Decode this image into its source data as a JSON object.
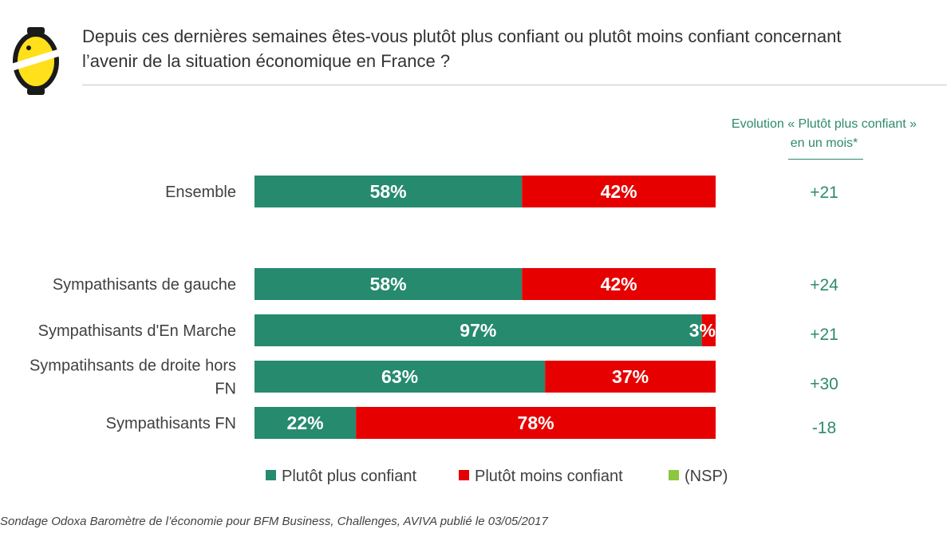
{
  "header": {
    "title_lines": [
      "Depuis ces dernières semaines êtes-vous plutôt plus confiant ou plutôt moins confiant concernant",
      "l’avenir de la situation économique en France ?"
    ]
  },
  "evolution": {
    "heading_lines": [
      "Evolution « Plutôt plus confiant »",
      "en un mois*"
    ]
  },
  "colors": {
    "plus": "#268a6e",
    "moins": "#e60000",
    "nsp": "#8dc63f",
    "label_text": "#404040",
    "evolution_text": "#2e8a6e"
  },
  "chart_data": {
    "type": "bar",
    "orientation": "horizontal",
    "stacked": true,
    "categories": [
      [
        "Ensemble"
      ],
      [
        "Sympathisants de gauche"
      ],
      [
        "Sympathisants d'En Marche"
      ],
      [
        "Sympatihsants de droite hors",
        "FN"
      ],
      [
        "Sympathisants FN"
      ]
    ],
    "series": [
      {
        "name": "Plutôt plus confiant",
        "values": [
          58,
          58,
          97,
          63,
          22
        ],
        "labels": [
          "58%",
          "58%",
          "97%",
          "63%",
          "22%"
        ]
      },
      {
        "name": "Plutôt moins confiant",
        "values": [
          42,
          42,
          3,
          37,
          78
        ],
        "labels": [
          "42%",
          "42%",
          "3%",
          "37%",
          "78%"
        ]
      },
      {
        "name": "(NSP)",
        "values": [
          0,
          0,
          0,
          0,
          0
        ],
        "labels": [
          "",
          "",
          "",
          "",
          ""
        ]
      }
    ],
    "evolution": [
      "+21",
      "+24",
      "+21",
      "+30",
      "-18"
    ],
    "xlim": [
      0,
      100
    ],
    "legend": "bottom"
  },
  "footer": {
    "source": "Sondage Odoxa Baromètre de l’économie pour BFM Business, Challenges, AVIVA publié le 03/05/2017"
  }
}
